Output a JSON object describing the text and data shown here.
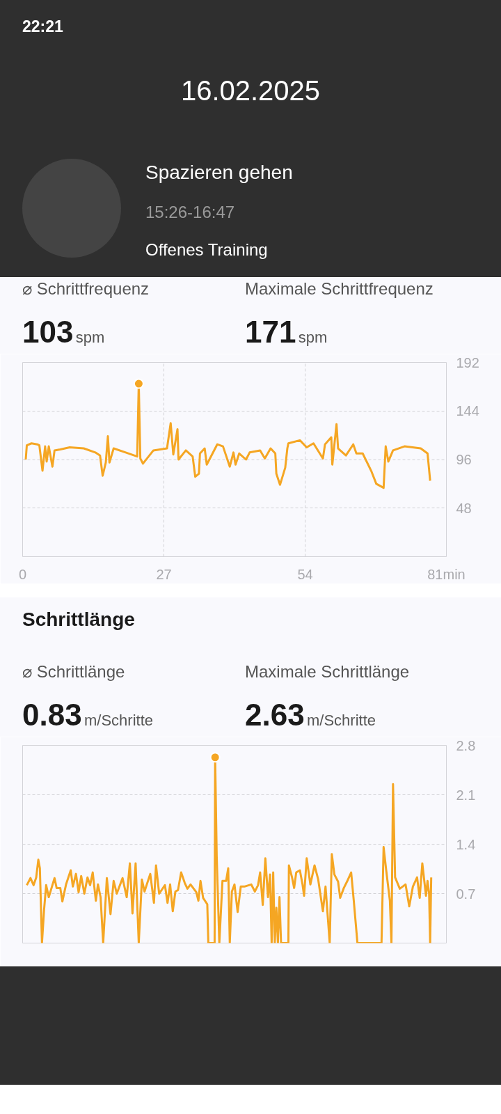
{
  "chart_data": [
    {
      "type": "line",
      "annotations": [
        "22:21",
        "16.02.2025",
        "Spazieren gehen",
        "15:26-16:47",
        "Offenes Training",
        "⌀ Schrittfrequenz",
        "103",
        "spm",
        "Maximale Schrittfrequenz",
        "171",
        "spm"
      ],
      "xlim": [
        0,
        81
      ],
      "xticks": [
        0,
        27,
        54,
        {
          "value": 81,
          "label": "81min"
        }
      ],
      "ylim": [
        0,
        192
      ],
      "yticks": [
        48,
        96,
        144,
        192
      ],
      "grid": true,
      "series": [
        {
          "color": "#f5a623",
          "x": [
            0.6,
            0.8,
            1.7,
            2.8,
            3.2,
            3.8,
            4.3,
            4.6,
            5.0,
            5.7,
            6.1,
            7.2,
            9.0,
            11.7,
            13.9,
            14.8,
            15.3,
            15.9,
            16.3,
            16.6,
            17.4,
            19.7,
            21.9,
            22.2,
            22.5,
            23.0,
            25.0,
            27.6,
            28.3,
            28.8,
            29.6,
            29.8,
            31.2,
            32.5,
            33.0,
            33.7,
            33.9,
            34.8,
            35.2,
            36.1,
            37.2,
            38.3,
            39.6,
            40.3,
            40.7,
            41.4,
            42.7,
            43.4,
            45.4,
            46.3,
            47.4,
            48.3,
            48.5,
            49.2,
            50.2,
            50.6,
            50.8,
            53.0,
            54.3,
            55.6,
            57.4,
            57.8,
            59.0,
            59.2,
            60.0,
            60.3,
            61.8,
            63.2,
            63.8,
            65.0,
            66.7,
            67.6,
            69.0,
            69.4,
            69.9,
            70.8,
            73.0,
            76.1,
            77.4,
            77.9
          ],
          "values": [
            96,
            110,
            112,
            111,
            110,
            85,
            109,
            94,
            109,
            89,
            105,
            106,
            108,
            107,
            103,
            100,
            80,
            93,
            119,
            93,
            107,
            103,
            99,
            171,
            97,
            92,
            105,
            107,
            132,
            101,
            126,
            96,
            105,
            99,
            79,
            82,
            102,
            107,
            91,
            100,
            111,
            109,
            89,
            103,
            91,
            102,
            96,
            103,
            105,
            97,
            107,
            102,
            82,
            71,
            88,
            107,
            112,
            115,
            108,
            112,
            97,
            111,
            118,
            91,
            131,
            107,
            100,
            111,
            102,
            102,
            84,
            72,
            68,
            109,
            94,
            105,
            109,
            107,
            102,
            75
          ]
        },
        {
          "type": "scatter",
          "marker": "circle",
          "color": "#f5a623",
          "x": [
            22.2
          ],
          "values": [
            171
          ]
        }
      ]
    },
    {
      "type": "line",
      "title": "Schrittlänge",
      "annotations": [
        "⌀ Schrittlänge",
        "0.83",
        "m/Schritte",
        "Maximale Schrittlänge",
        "2.63",
        "m/Schritte"
      ],
      "xlim": [
        0,
        81
      ],
      "ylim": [
        0,
        2.8
      ],
      "yticks": [
        0.7,
        1.4,
        2.1,
        2.8
      ],
      "grid": true,
      "tick_labels": "y",
      "series": [
        {
          "color": "#f5a623",
          "x": [
            0.8,
            1.5,
            2.1,
            2.6,
            3.0,
            3.3,
            3.7,
            4.1,
            4.5,
            5.0,
            6.1,
            6.5,
            7.2,
            7.6,
            8.3,
            9.2,
            9.6,
            10.2,
            10.7,
            11.2,
            11.8,
            12.4,
            12.9,
            13.4,
            14.0,
            14.4,
            14.9,
            15.4,
            16.1,
            16.8,
            17.4,
            18.0,
            19.1,
            19.9,
            20.5,
            21.0,
            21.6,
            22.2,
            22.8,
            23.3,
            24.4,
            25.1,
            25.5,
            26.1,
            27.2,
            27.7,
            28.2,
            28.7,
            29.2,
            29.7,
            30.3,
            31.0,
            31.5,
            32.1,
            33.2,
            33.6,
            34.0,
            34.5,
            35.3,
            35.5,
            36.7,
            36.8,
            37.1,
            37.6,
            38.2,
            38.9,
            39.3,
            39.6,
            40.0,
            40.5,
            41.1,
            41.7,
            42.4,
            43.7,
            44.4,
            45.0,
            45.4,
            45.9,
            46.4,
            46.9,
            47.3,
            47.6,
            47.9,
            48.2,
            48.5,
            48.8,
            49.1,
            49.4,
            50.8,
            50.9,
            51.5,
            51.9,
            52.3,
            53.0,
            53.5,
            53.8,
            54.3,
            55.0,
            55.8,
            56.5,
            57.4,
            57.9,
            58.7,
            59.1,
            59.6,
            60.3,
            60.7,
            61.4,
            62.2,
            62.8,
            63.3,
            64.0,
            68.6,
            69.0,
            69.5,
            70.2,
            70.5,
            70.8,
            71.2,
            72.1,
            73.2,
            73.9,
            74.6,
            75.4,
            75.9,
            76.4,
            77.1,
            77.4,
            77.7,
            77.9,
            78.1
          ],
          "values": [
            0.82,
            0.92,
            0.82,
            0.93,
            1.18,
            1.06,
            0,
            0.47,
            0.82,
            0.65,
            0.92,
            0.78,
            0.78,
            0.59,
            0.83,
            1.03,
            0.8,
            0.98,
            0.72,
            0.95,
            0.7,
            0.93,
            0.82,
            1.0,
            0.6,
            0.83,
            0.65,
            0,
            0.92,
            0.41,
            0.88,
            0.7,
            0.92,
            0.65,
            1.13,
            0.42,
            1.13,
            0,
            0.9,
            0.73,
            0.98,
            0.57,
            1.1,
            0.7,
            0.82,
            0.57,
            0.83,
            0.45,
            0.73,
            0.75,
            1.0,
            0.85,
            0.77,
            0.83,
            0.72,
            0.6,
            0.88,
            0.64,
            0.55,
            0,
            0,
            2.63,
            1.23,
            0,
            0.88,
            0.88,
            1.06,
            0,
            0.73,
            0.83,
            0.44,
            0.8,
            0.8,
            0.83,
            0.73,
            0.82,
            1.0,
            0.54,
            1.2,
            0.65,
            0.97,
            0,
            1.0,
            0,
            0.5,
            0,
            0.65,
            0,
            0,
            1.1,
            0.93,
            0.78,
            1.0,
            1.03,
            0.83,
            0.67,
            1.2,
            0.83,
            1.1,
            0.9,
            0.45,
            0.8,
            0,
            1.26,
            0.97,
            0.87,
            0.64,
            0.78,
            0.9,
            1.0,
            0.6,
            0,
            0,
            1.36,
            1.03,
            0.6,
            0,
            2.25,
            0.93,
            0.77,
            0.83,
            0.52,
            0.8,
            0.93,
            0.64,
            1.13,
            0.67,
            0.88,
            0.7,
            0,
            0.93
          ]
        },
        {
          "type": "scatter",
          "marker": "circle",
          "color": "#f5a623",
          "x": [
            36.8
          ],
          "values": [
            2.63
          ]
        }
      ]
    }
  ]
}
